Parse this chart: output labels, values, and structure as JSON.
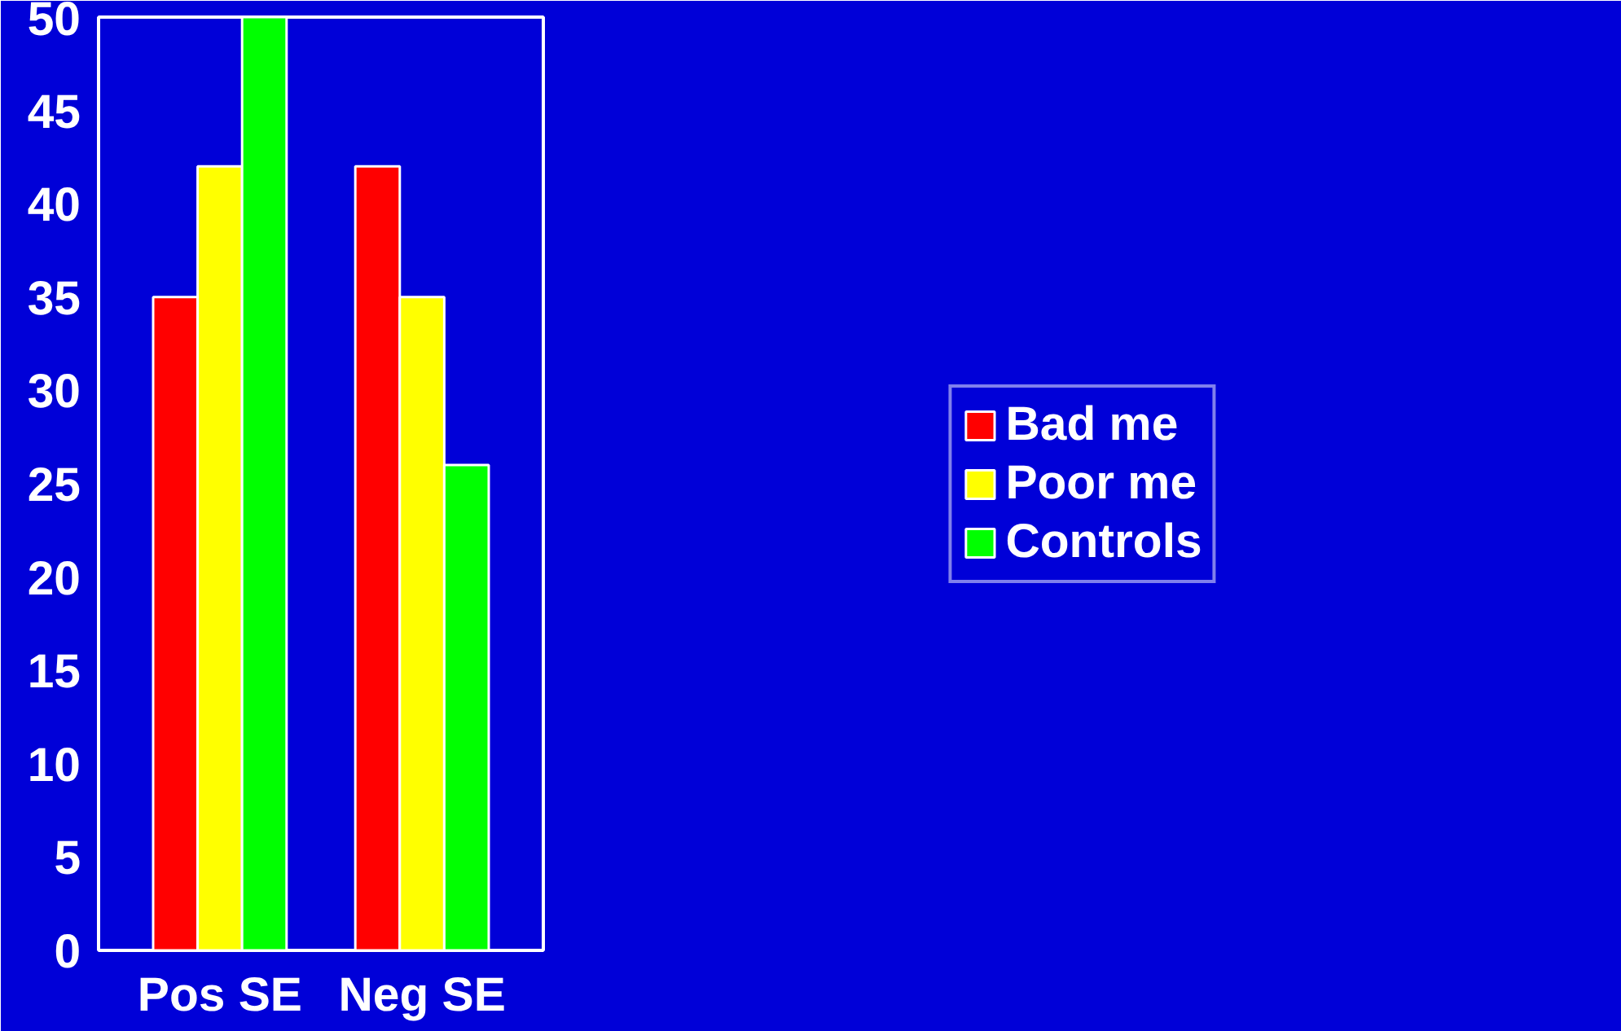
{
  "chart_data": {
    "type": "bar",
    "categories": [
      "Pos SE",
      "Neg SE"
    ],
    "series": [
      {
        "name": "Bad me",
        "color": "#ff0000",
        "values": [
          35,
          42
        ]
      },
      {
        "name": "Poor me",
        "color": "#ffff00",
        "values": [
          42,
          35
        ]
      },
      {
        "name": "Controls",
        "color": "#00ff00",
        "values": [
          50,
          26
        ]
      }
    ],
    "ylim": [
      0,
      50
    ],
    "yticks": [
      0,
      5,
      10,
      15,
      20,
      25,
      30,
      35,
      40,
      45,
      50
    ],
    "grid": false,
    "legend": "right"
  }
}
